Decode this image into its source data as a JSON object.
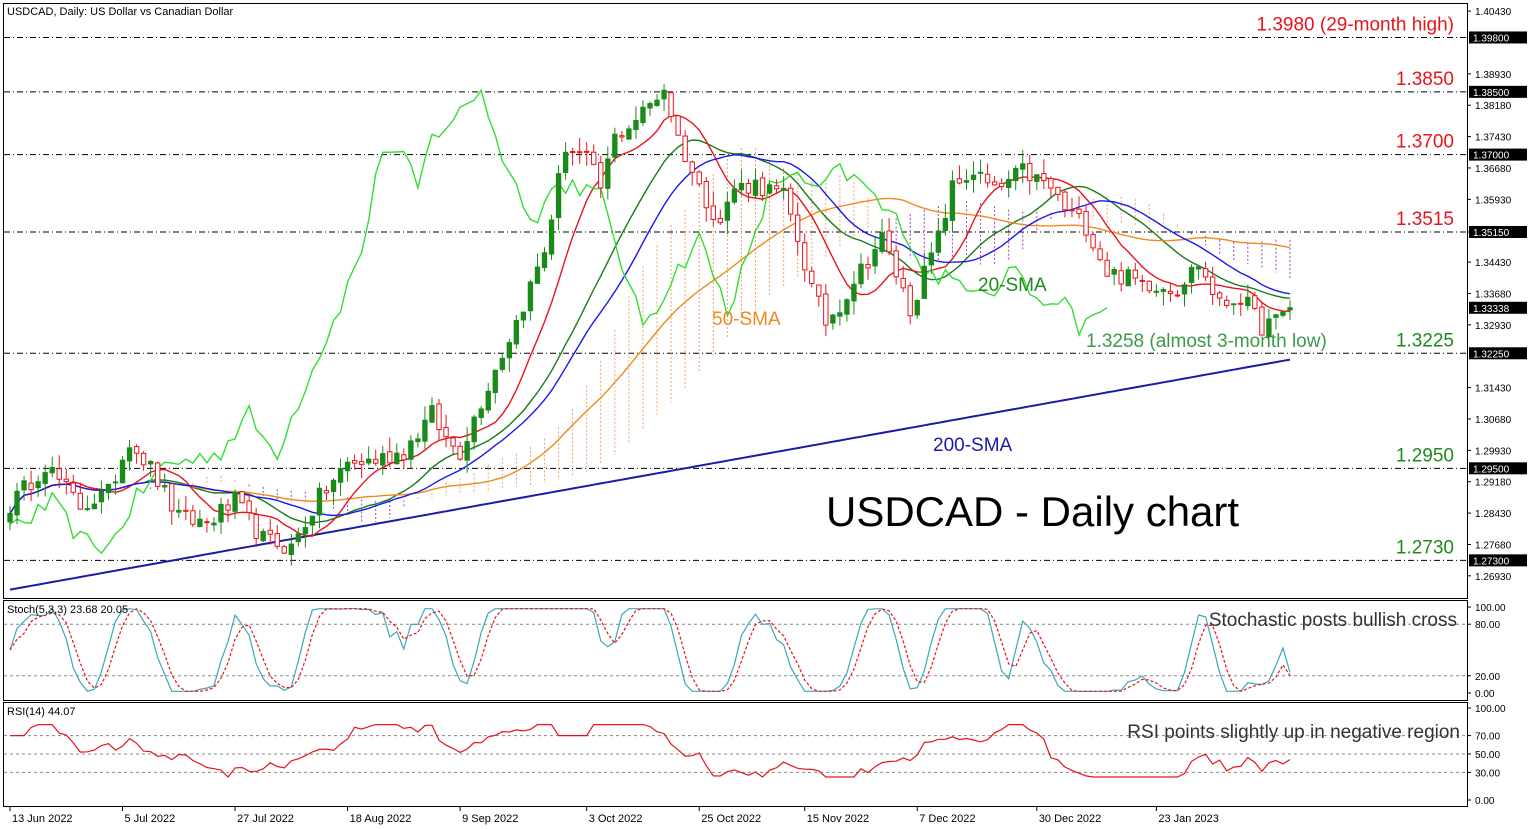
{
  "window": {
    "symbol_label": "USDCAD, Daily:  US Dollar vs Canadian Dollar"
  },
  "chart_data": [
    {
      "type": "candlestick",
      "panel": "price",
      "title": "USDCAD - Daily chart",
      "ylim": [
        1.264,
        1.406
      ],
      "y_ticks": [
        "1.40430",
        "1.38930",
        "1.38180",
        "1.37430",
        "1.36680",
        "1.35930",
        "1.35150",
        "1.34430",
        "1.33680",
        "1.32930",
        "1.31430",
        "1.30680",
        "1.29930",
        "1.29180",
        "1.28430",
        "1.27680",
        "1.26930"
      ],
      "highlight_labels": [
        {
          "value": 1.398,
          "text": "1.39800",
          "bg": "#000000"
        },
        {
          "value": 1.385,
          "text": "1.38500",
          "bg": "#000000"
        },
        {
          "value": 1.37,
          "text": "1.37000",
          "bg": "#000000"
        },
        {
          "value": 1.3515,
          "text": "1.35150",
          "bg": "#000000"
        },
        {
          "value": 1.33338,
          "text": "1.33338",
          "bg": "#000000"
        },
        {
          "value": 1.3225,
          "text": "1.32250",
          "bg": "#000000"
        },
        {
          "value": 1.295,
          "text": "1.29500",
          "bg": "#000000"
        },
        {
          "value": 1.273,
          "text": "1.27300",
          "bg": "#000000"
        }
      ],
      "levels": [
        {
          "value": 1.398,
          "label": "1.3980 (29-month high)",
          "color": "#e8141c"
        },
        {
          "value": 1.385,
          "label": "1.3850",
          "color": "#e8141c"
        },
        {
          "value": 1.37,
          "label": "1.3700",
          "color": "#e8141c"
        },
        {
          "value": 1.3515,
          "label": "1.3515",
          "color": "#e8141c"
        },
        {
          "value": 1.3225,
          "label": "1.3225",
          "color": "#1e8a1e"
        },
        {
          "value": 1.295,
          "label": "1.2950",
          "color": "#1e8a1e"
        },
        {
          "value": 1.273,
          "label": "1.2730",
          "color": "#1e8a1e"
        }
      ],
      "annotations": [
        {
          "text": "20-SMA",
          "color": "#1e8a1e"
        },
        {
          "text": "50-SMA",
          "color": "#f08a1e"
        },
        {
          "text": "200-SMA",
          "color": "#1a1aa6"
        },
        {
          "text": "1.3258 (almost 3-month low)",
          "color": "#3a9a4a"
        }
      ],
      "x_labels": [
        "13 Jun 2022",
        "5 Jul 2022",
        "27 Jul 2022",
        "18 Aug 2022",
        "9 Sep 2022",
        "3 Oct 2022",
        "25 Oct 2022",
        "15 Nov 2022",
        "7 Dec 2022",
        "30 Dec 2022",
        "23 Jan 2023"
      ],
      "x_label_index": [
        0,
        16,
        32,
        48,
        64,
        82,
        98,
        113,
        129,
        146,
        163
      ],
      "n_bars": 183,
      "anchor_closes": [
        [
          0,
          1.286
        ],
        [
          5,
          1.296
        ],
        [
          10,
          1.286
        ],
        [
          14,
          1.289
        ],
        [
          17,
          1.302
        ],
        [
          20,
          1.295
        ],
        [
          24,
          1.283
        ],
        [
          28,
          1.282
        ],
        [
          32,
          1.287
        ],
        [
          36,
          1.278
        ],
        [
          40,
          1.276
        ],
        [
          44,
          1.288
        ],
        [
          48,
          1.296
        ],
        [
          52,
          1.297
        ],
        [
          56,
          1.299
        ],
        [
          60,
          1.308
        ],
        [
          62,
          1.302
        ],
        [
          64,
          1.299
        ],
        [
          68,
          1.315
        ],
        [
          72,
          1.33
        ],
        [
          76,
          1.347
        ],
        [
          79,
          1.372
        ],
        [
          82,
          1.369
        ],
        [
          84,
          1.362
        ],
        [
          86,
          1.374
        ],
        [
          90,
          1.38
        ],
        [
          93,
          1.386
        ],
        [
          95,
          1.374
        ],
        [
          98,
          1.362
        ],
        [
          101,
          1.354
        ],
        [
          103,
          1.362
        ],
        [
          106,
          1.363
        ],
        [
          110,
          1.36
        ],
        [
          112,
          1.35
        ],
        [
          114,
          1.338
        ],
        [
          116,
          1.33
        ],
        [
          118,
          1.334
        ],
        [
          120,
          1.34
        ],
        [
          124,
          1.35
        ],
        [
          128,
          1.333
        ],
        [
          132,
          1.35
        ],
        [
          134,
          1.362
        ],
        [
          137,
          1.366
        ],
        [
          140,
          1.361
        ],
        [
          144,
          1.366
        ],
        [
          148,
          1.362
        ],
        [
          150,
          1.357
        ],
        [
          153,
          1.353
        ],
        [
          156,
          1.342
        ],
        [
          160,
          1.34
        ],
        [
          163,
          1.339
        ],
        [
          166,
          1.338
        ],
        [
          169,
          1.344
        ],
        [
          172,
          1.334
        ],
        [
          175,
          1.336
        ],
        [
          178,
          1.329
        ],
        [
          180,
          1.33
        ],
        [
          182,
          1.3334
        ]
      ],
      "series": [
        {
          "name": "20-SMA",
          "color": "#1a7a1a",
          "type": "sma",
          "period": 20
        },
        {
          "name": "50-SMA",
          "color": "#f08a1e",
          "type": "sma",
          "period": 50
        },
        {
          "name": "200-SMA",
          "color": "#1a1aa6",
          "type": "ramp",
          "values": [
            1.266,
            1.321
          ]
        },
        {
          "name": "",
          "color": "#e8141c",
          "type": "sma",
          "period": 9
        },
        {
          "name": "",
          "color": "#1a1aee",
          "type": "sma",
          "period": 26
        },
        {
          "name": "",
          "color": "#33dd33",
          "type": "lag",
          "lag": 26
        }
      ],
      "colors": {
        "up": "#1a8a1a",
        "down": "#e8141c",
        "cloud": "#f0a070",
        "cloud_bear": "#a040c0"
      }
    },
    {
      "type": "line",
      "panel": "stochastic",
      "label": "Stoch(5,3,3) 23.68 20.05",
      "annotation": "Stochastic posts bullish cross",
      "ylim": [
        0,
        100
      ],
      "y_ticks": [
        "100.00",
        "80.00",
        "20.00",
        "0.00"
      ],
      "levels": [
        80,
        20
      ],
      "series": [
        {
          "name": "%K",
          "color": "#3aa8b8",
          "last": 23.68
        },
        {
          "name": "%D",
          "color": "#e8141c",
          "last": 20.05
        }
      ]
    },
    {
      "type": "line",
      "panel": "rsi",
      "label": "RSI(14) 44.07",
      "annotation": "RSI points slightly up in negative region",
      "ylim": [
        0,
        100
      ],
      "y_ticks": [
        "100.00",
        "70.00",
        "50.00",
        "30.00",
        "0.00"
      ],
      "levels": [
        70,
        50,
        30
      ],
      "series": [
        {
          "name": "RSI",
          "color": "#e8141c",
          "last": 44.07
        }
      ]
    }
  ]
}
